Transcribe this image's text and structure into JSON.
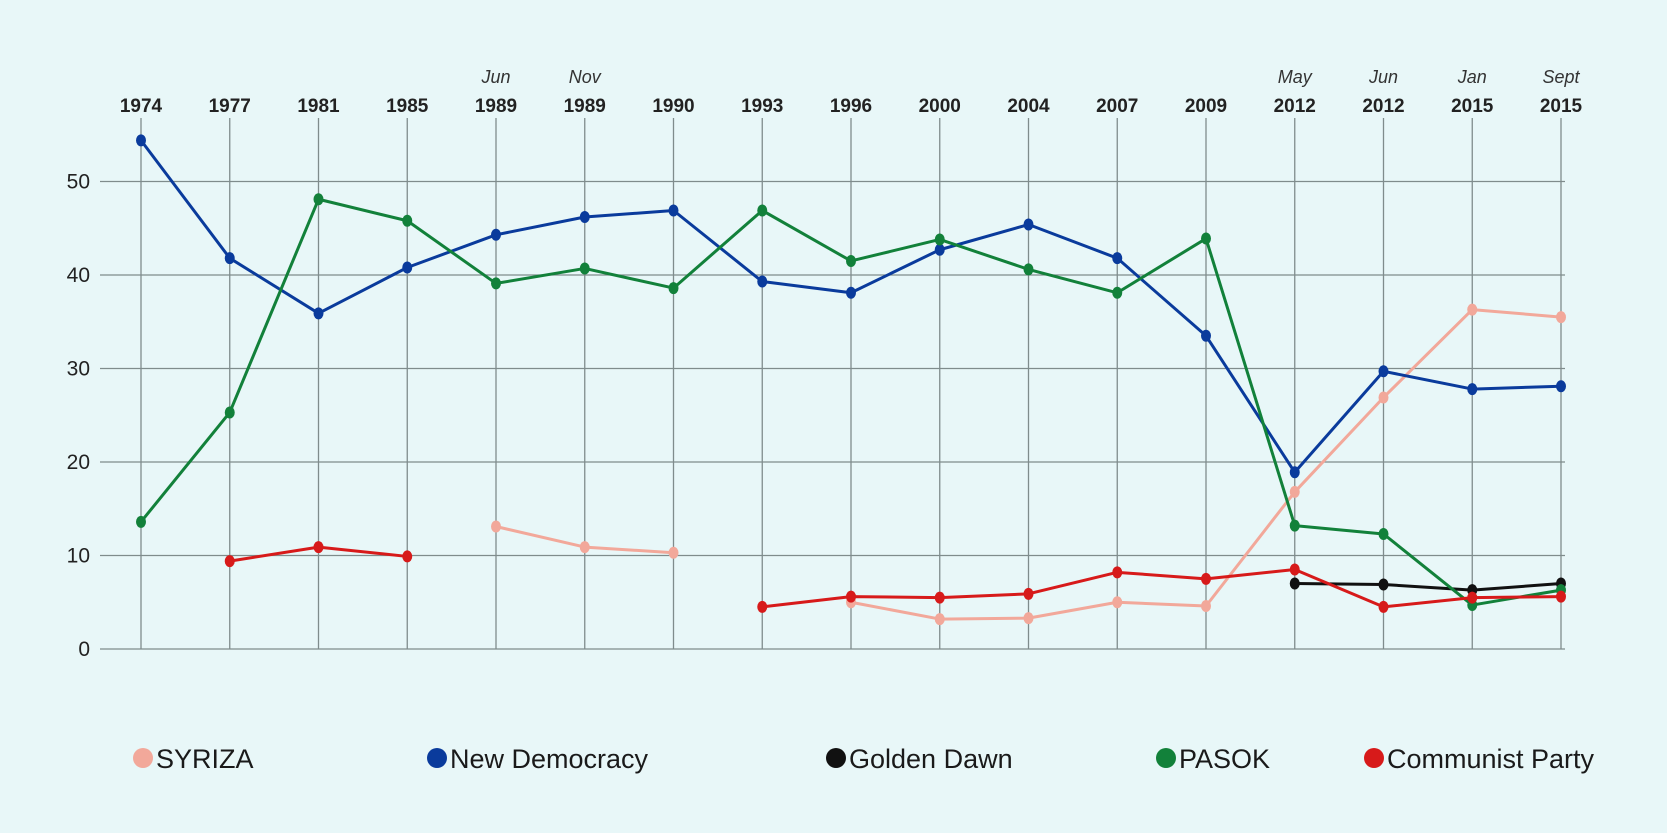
{
  "chart_data": {
    "type": "line",
    "categories": [
      {
        "top": "",
        "bottom": "1974"
      },
      {
        "top": "",
        "bottom": "1977"
      },
      {
        "top": "",
        "bottom": "1981"
      },
      {
        "top": "",
        "bottom": "1985"
      },
      {
        "top": "Jun",
        "bottom": "1989"
      },
      {
        "top": "Nov",
        "bottom": "1989"
      },
      {
        "top": "",
        "bottom": "1990"
      },
      {
        "top": "",
        "bottom": "1993"
      },
      {
        "top": "",
        "bottom": "1996"
      },
      {
        "top": "",
        "bottom": "2000"
      },
      {
        "top": "",
        "bottom": "2004"
      },
      {
        "top": "",
        "bottom": "2007"
      },
      {
        "top": "",
        "bottom": "2009"
      },
      {
        "top": "May",
        "bottom": "2012"
      },
      {
        "top": "Jun",
        "bottom": "2012"
      },
      {
        "top": "Jan",
        "bottom": "2015"
      },
      {
        "top": "Sept",
        "bottom": "2015"
      }
    ],
    "ylim": [
      0,
      55
    ],
    "yticks": [
      0,
      10,
      20,
      30,
      40,
      50
    ],
    "grid": true,
    "legend_position": "bottom",
    "series": [
      {
        "name": "SYRIZA",
        "color": "#f2a89a",
        "values": [
          null,
          null,
          null,
          null,
          13.1,
          10.9,
          10.3,
          null,
          5.0,
          3.2,
          3.3,
          5.0,
          4.6,
          16.8,
          26.9,
          36.3,
          35.5
        ]
      },
      {
        "name": "New Democracy",
        "color": "#0a3b9c",
        "values": [
          54.4,
          41.8,
          35.9,
          40.8,
          44.3,
          46.2,
          46.9,
          39.3,
          38.1,
          42.7,
          45.4,
          41.8,
          33.5,
          18.9,
          29.7,
          27.8,
          28.1
        ]
      },
      {
        "name": "Golden Dawn",
        "color": "#111111",
        "values": [
          null,
          null,
          null,
          null,
          null,
          null,
          null,
          null,
          null,
          null,
          null,
          null,
          null,
          7.0,
          6.9,
          6.3,
          7.0
        ]
      },
      {
        "name": "PASOK",
        "color": "#12813a",
        "values": [
          13.6,
          25.3,
          48.1,
          45.8,
          39.1,
          40.7,
          38.6,
          46.9,
          41.5,
          43.8,
          40.6,
          38.1,
          43.9,
          13.2,
          12.3,
          4.7,
          6.3
        ]
      },
      {
        "name": "Communist Party",
        "color": "#d71a1a",
        "values": [
          null,
          9.4,
          10.9,
          9.9,
          null,
          null,
          null,
          4.5,
          5.6,
          5.5,
          5.9,
          8.2,
          7.5,
          8.5,
          4.5,
          5.5,
          5.6
        ]
      }
    ]
  }
}
